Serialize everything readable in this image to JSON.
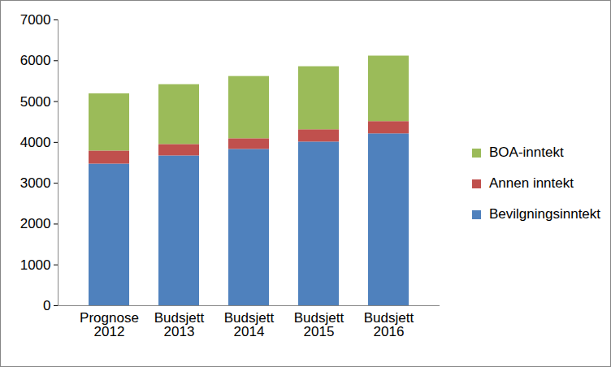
{
  "chart_data": {
    "type": "bar",
    "stacked": true,
    "grid": false,
    "legend": "right",
    "categories": [
      "Prognose\n2012",
      "Budsjett\n2013",
      "Budsjett\n2014",
      "Budsjett\n2015",
      "Budsjett\n2016"
    ],
    "series": [
      {
        "name": "Bevilgningsinntekt",
        "color": "#4f81bd",
        "values": [
          3470,
          3670,
          3830,
          4010,
          4210
        ]
      },
      {
        "name": "Annen inntekt",
        "color": "#c0504d",
        "values": [
          320,
          280,
          260,
          300,
          300
        ]
      },
      {
        "name": "BOA-inntekt",
        "color": "#9bbb59",
        "values": [
          1400,
          1465,
          1525,
          1545,
          1605
        ]
      }
    ],
    "ylim": [
      0,
      7000
    ],
    "yticks": [
      0,
      1000,
      2000,
      3000,
      4000,
      5000,
      6000,
      7000
    ]
  }
}
